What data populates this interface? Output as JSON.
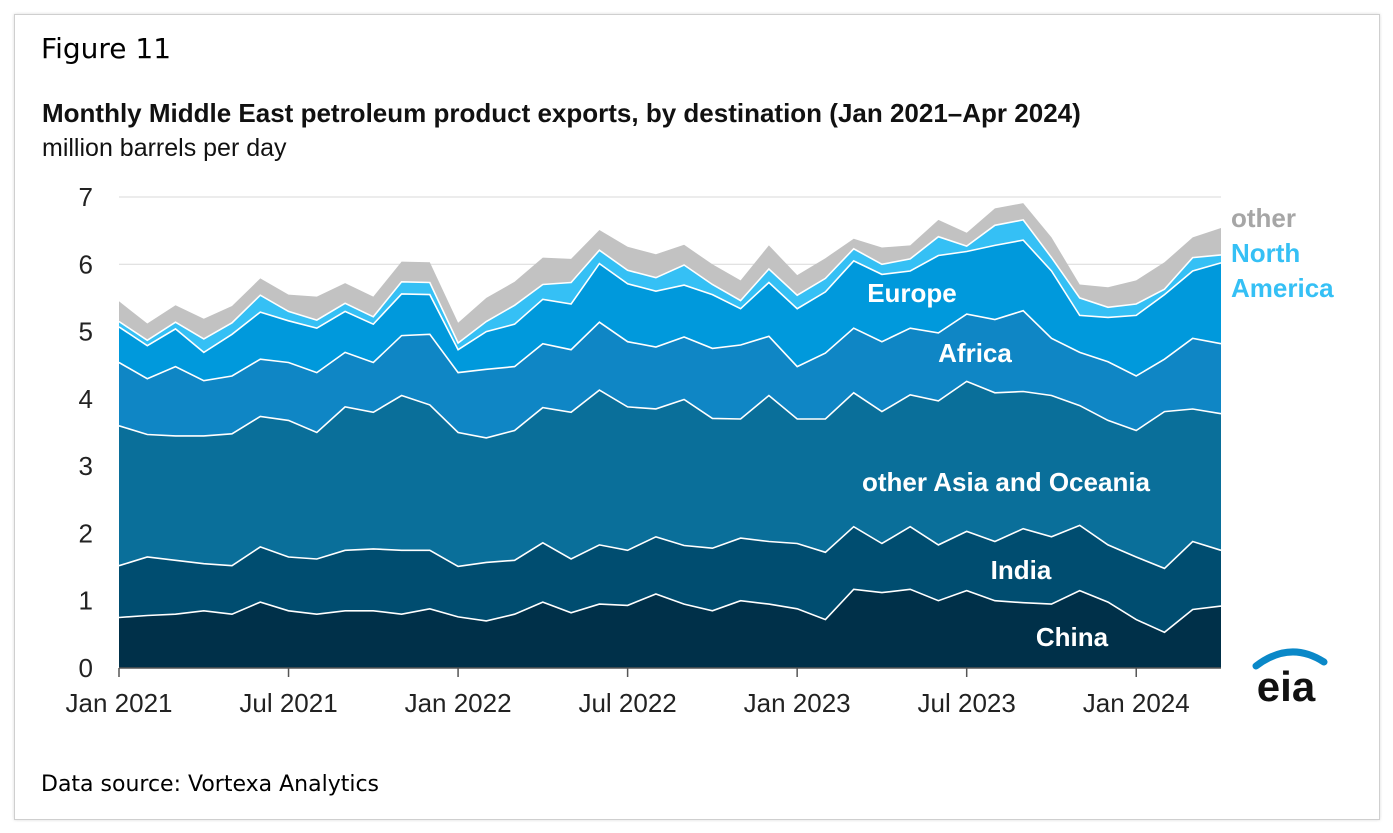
{
  "figure_label": "Figure 11",
  "data_source": "Data source: Vortexa Analytics",
  "logo_text": "eia",
  "chart_data": {
    "type": "area",
    "stacked": true,
    "title": "Monthly Middle East petroleum product exports, by destination (Jan 2021–Apr 2024)",
    "ylabel": "million barrels per day",
    "ylim": [
      0,
      7
    ],
    "yticks": [
      "0",
      "1",
      "2",
      "3",
      "4",
      "5",
      "6",
      "7"
    ],
    "x_start": "Jan 2021",
    "x_end": "Apr 2024",
    "xtick_labels": [
      "Jan 2021",
      "Jul 2021",
      "Jan 2022",
      "Jul 2022",
      "Jan 2023",
      "Jul 2023",
      "Jan 2024"
    ],
    "xtick_months": [
      0,
      6,
      12,
      18,
      24,
      30,
      36
    ],
    "series": [
      {
        "name": "China",
        "color": "#003049",
        "values": [
          0.75,
          0.78,
          0.8,
          0.85,
          0.8,
          0.98,
          0.85,
          0.8,
          0.85,
          0.85,
          0.8,
          0.88,
          0.76,
          0.7,
          0.8,
          0.98,
          0.82,
          0.95,
          0.93,
          1.1,
          0.95,
          0.85,
          1.0,
          0.95,
          0.88,
          0.72,
          1.17,
          1.12,
          1.17,
          1.0,
          1.15,
          1.0,
          0.97,
          0.95,
          1.15,
          0.98,
          0.72,
          0.53,
          0.87,
          0.92
        ]
      },
      {
        "name": "India",
        "color": "#004d70",
        "values": [
          0.77,
          0.87,
          0.8,
          0.7,
          0.72,
          0.82,
          0.8,
          0.82,
          0.9,
          0.92,
          0.95,
          0.87,
          0.75,
          0.87,
          0.8,
          0.88,
          0.8,
          0.88,
          0.82,
          0.85,
          0.87,
          0.93,
          0.93,
          0.93,
          0.97,
          1.0,
          0.93,
          0.73,
          0.93,
          0.83,
          0.88,
          0.88,
          1.1,
          1.0,
          0.97,
          0.85,
          0.93,
          0.95,
          1.01,
          0.83
        ]
      },
      {
        "name": "other Asia and Oceania",
        "color": "#0a6f9a",
        "values": [
          2.08,
          1.82,
          1.85,
          1.9,
          1.96,
          1.94,
          2.03,
          1.88,
          2.13,
          2.03,
          2.3,
          2.16,
          1.99,
          1.85,
          1.93,
          2.01,
          2.18,
          2.3,
          2.13,
          1.9,
          2.17,
          1.93,
          1.77,
          2.17,
          1.85,
          1.98,
          1.99,
          1.96,
          1.96,
          2.14,
          2.23,
          2.21,
          2.04,
          2.1,
          1.78,
          1.85,
          1.88,
          2.33,
          1.97,
          2.03
        ]
      },
      {
        "name": "Africa",
        "color": "#0f86c5",
        "values": [
          0.94,
          0.83,
          1.03,
          0.82,
          0.86,
          0.85,
          0.86,
          0.89,
          0.81,
          0.74,
          0.89,
          1.05,
          0.89,
          1.02,
          0.95,
          0.95,
          0.93,
          1.01,
          0.97,
          0.92,
          0.93,
          1.04,
          1.1,
          0.88,
          0.78,
          0.98,
          0.96,
          1.04,
          0.99,
          1.01,
          1.0,
          1.09,
          1.2,
          0.85,
          0.79,
          0.87,
          0.81,
          0.78,
          1.05,
          1.04
        ]
      },
      {
        "name": "Europe",
        "color": "#0099dc",
        "values": [
          0.53,
          0.49,
          0.56,
          0.42,
          0.62,
          0.7,
          0.62,
          0.66,
          0.61,
          0.57,
          0.62,
          0.59,
          0.34,
          0.56,
          0.63,
          0.66,
          0.68,
          0.87,
          0.86,
          0.83,
          0.77,
          0.8,
          0.54,
          0.8,
          0.86,
          0.91,
          1.0,
          1.0,
          0.85,
          1.15,
          0.93,
          1.1,
          1.05,
          1.0,
          0.55,
          0.66,
          0.9,
          0.96,
          1.0,
          1.2
        ]
      },
      {
        "name": "North America",
        "color": "#35c0f5",
        "values": [
          0.08,
          0.08,
          0.1,
          0.2,
          0.17,
          0.25,
          0.14,
          0.12,
          0.12,
          0.11,
          0.18,
          0.18,
          0.1,
          0.15,
          0.28,
          0.22,
          0.32,
          0.2,
          0.2,
          0.2,
          0.3,
          0.15,
          0.12,
          0.2,
          0.2,
          0.2,
          0.18,
          0.15,
          0.18,
          0.28,
          0.08,
          0.3,
          0.3,
          0.2,
          0.26,
          0.15,
          0.17,
          0.08,
          0.2,
          0.12
        ]
      },
      {
        "name": "other",
        "color": "#c2c2c2",
        "values": [
          0.3,
          0.25,
          0.25,
          0.3,
          0.25,
          0.25,
          0.25,
          0.35,
          0.3,
          0.3,
          0.3,
          0.3,
          0.3,
          0.35,
          0.35,
          0.4,
          0.35,
          0.3,
          0.35,
          0.35,
          0.3,
          0.3,
          0.3,
          0.35,
          0.3,
          0.3,
          0.15,
          0.25,
          0.2,
          0.25,
          0.2,
          0.25,
          0.25,
          0.3,
          0.2,
          0.3,
          0.35,
          0.4,
          0.3,
          0.4
        ]
      }
    ],
    "area_labels": [
      "China",
      "India",
      "other Asia and Oceania",
      "Africa",
      "Europe"
    ],
    "legend": [
      "other",
      "North",
      "America"
    ]
  }
}
